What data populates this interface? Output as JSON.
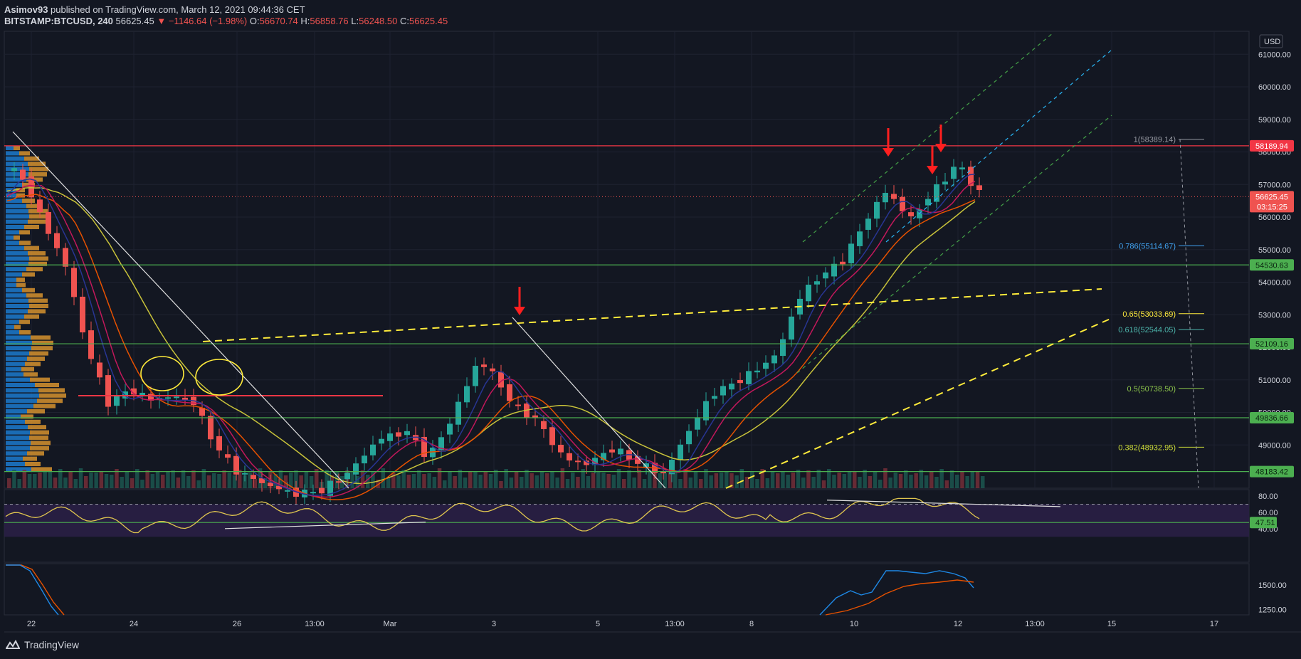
{
  "header": {
    "author": "Asimov93",
    "published_text": "published on TradingView.com, March 12, 2021 09:44:36 CET",
    "symbol": "BITSTAMP:BTCUSD, 240",
    "last": "56625.45",
    "change": "▼ −1146.64 (−1.98%)",
    "o_label": "O:",
    "o": "56670.74",
    "h_label": "H:",
    "h": "56858.76",
    "l_label": "L:",
    "l": "56248.50",
    "c_label": "C:",
    "c": "56625.45"
  },
  "footer": {
    "brand": "TradingView"
  },
  "colors": {
    "background": "#131722",
    "up": "#26a69a",
    "down": "#ef5350",
    "support": "#4caf50",
    "resistance": "#f23645",
    "trendline_yellow": "#ffeb3b",
    "rsi_band": "#2a1f45",
    "text": "#d1d4dc"
  },
  "chart_data": {
    "type": "candlestick",
    "price_axis": {
      "currency": "USD",
      "ticks": [
        "61000.00",
        "60000.00",
        "59000.00",
        "58000.00",
        "57000.00",
        "56000.00",
        "55000.00",
        "54000.00",
        "53000.00",
        "52000.00",
        "51000.00",
        "50000.00",
        "49000.00"
      ],
      "ylim": [
        48000,
        61600
      ]
    },
    "time_axis": {
      "ticks": [
        "22",
        "24",
        "26",
        "13:00",
        "Mar",
        "3",
        "5",
        "13:00",
        "8",
        "10",
        "12",
        "13:00",
        "15",
        "17"
      ]
    },
    "horizontal_levels": [
      {
        "price": 58189.94,
        "label": "58189.94",
        "color": "#f23645"
      },
      {
        "price": 54530.63,
        "label": "54530.63",
        "color": "#4caf50"
      },
      {
        "price": 52109.16,
        "label": "52109.16",
        "color": "#4caf50"
      },
      {
        "price": 49836.66,
        "label": "49836.66",
        "color": "#4caf50"
      },
      {
        "price": 48183.42,
        "label": "48183.42",
        "color": "#4caf50"
      }
    ],
    "current_price": {
      "price": 56625.45,
      "label": "56625.45",
      "countdown": "03:15:25"
    },
    "fibonacci": [
      {
        "label": "1(58389.14)",
        "price": 58389.14,
        "color": "#9598a1"
      },
      {
        "label": "0.786(55114.67)",
        "price": 55114.67,
        "color": "#42a5f5"
      },
      {
        "label": "0.65(53033.69)",
        "price": 53033.69,
        "color": "#ffeb3b"
      },
      {
        "label": "0.618(52544.05)",
        "price": 52544.05,
        "color": "#4db6ac"
      },
      {
        "label": "0.5(50738.50)",
        "price": 50738.5,
        "color": "#8bc34a"
      },
      {
        "label": "0.382(48932.95)",
        "price": 48932.95,
        "color": "#cddc39"
      }
    ],
    "rsi": {
      "axis_ticks": [
        "80.00",
        "60.00",
        "40.00"
      ],
      "current": "47.51"
    },
    "macd": {
      "axis_ticks": [
        "1500.00",
        "1250.00"
      ]
    }
  }
}
